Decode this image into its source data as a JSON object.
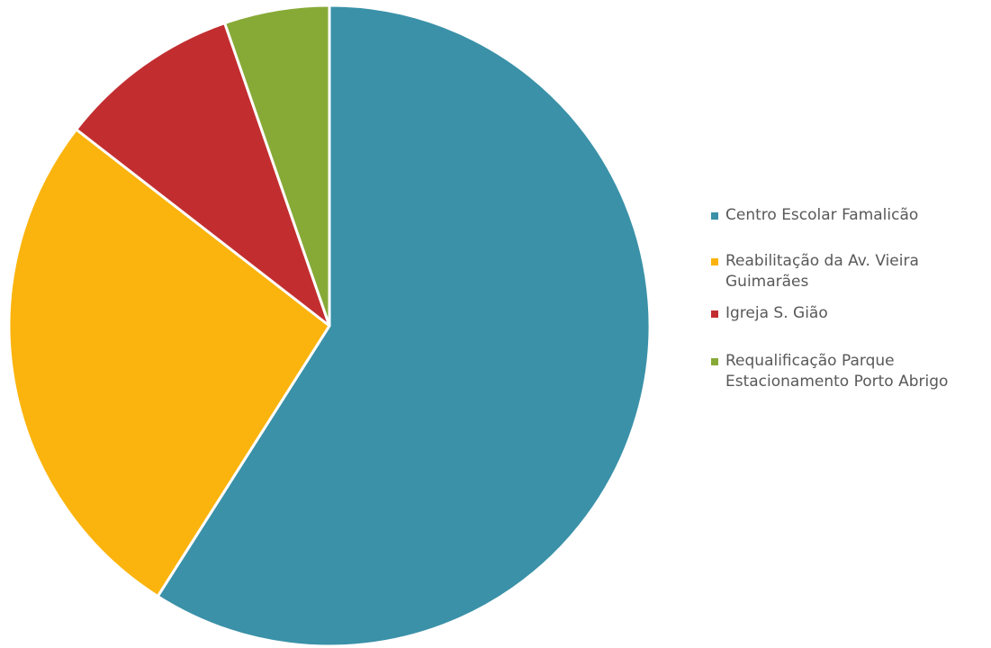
{
  "chart_data": {
    "type": "pie",
    "title": "",
    "categories": [
      "Centro Escolar Famalicão",
      "Reabilitação da Av. Vieira Guimarães",
      "Igreja S. Gião",
      "Requalificação Parque Estacionamento Porto Abrigo"
    ],
    "values": [
      59.0,
      26.5,
      9.2,
      5.3
    ],
    "colors": [
      "#3A91A8",
      "#FBB40D",
      "#C22E30",
      "#87AA37"
    ],
    "start_angle": "top",
    "direction": "clockwise",
    "legend_position": "right",
    "show_data_labels": false
  }
}
